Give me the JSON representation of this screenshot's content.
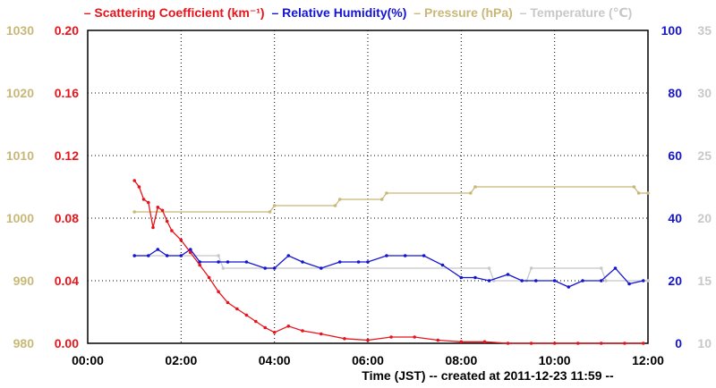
{
  "chart_data": {
    "type": "line",
    "title_parts": [
      {
        "text": "– Scattering Coefficient (km⁻¹)",
        "color": "#e8141b"
      },
      {
        "text": "– Relative Humidity(%)",
        "color": "#1414d2"
      },
      {
        "text": "– Pressure (hPa)",
        "color": "#c8b878"
      },
      {
        "text": "– Temperature (℃)",
        "color": "#c8c8c8"
      }
    ],
    "xlabel": "Time (JST)   -- created at 2011-12-23 11:59 --",
    "x_ticks": [
      "00:00",
      "02:00",
      "04:00",
      "06:00",
      "08:00",
      "10:00",
      "12:00"
    ],
    "x_range_hours": [
      0,
      12
    ],
    "grid": true,
    "axes": {
      "pressure": {
        "range": [
          980,
          1030
        ],
        "ticks": [
          "980",
          "990",
          "1000",
          "1010",
          "1020",
          "1030"
        ],
        "color": "#c8b878",
        "side": "left-outer"
      },
      "scattering": {
        "range": [
          0,
          0.2
        ],
        "ticks": [
          "0.00",
          "0.04",
          "0.08",
          "0.12",
          "0.16",
          "0.20"
        ],
        "color": "#e8141b",
        "side": "left-inner"
      },
      "humidity": {
        "range": [
          0,
          100
        ],
        "ticks": [
          "0",
          "20",
          "40",
          "60",
          "80",
          "100"
        ],
        "color": "#1414d2",
        "side": "right-inner"
      },
      "temperature": {
        "range": [
          10,
          35
        ],
        "ticks": [
          "10",
          "15",
          "20",
          "25",
          "30",
          "35"
        ],
        "color": "#c8c8c8",
        "side": "right-outer"
      }
    },
    "series": [
      {
        "name": "Scattering Coefficient",
        "axis": "scattering",
        "color": "#e8141b",
        "x": [
          1.0,
          1.1,
          1.2,
          1.3,
          1.4,
          1.5,
          1.6,
          1.7,
          1.8,
          2.0,
          2.2,
          2.4,
          2.6,
          2.8,
          3.0,
          3.2,
          3.4,
          3.6,
          3.8,
          4.0,
          4.3,
          4.6,
          5.0,
          5.5,
          6.0,
          6.5,
          7.0,
          7.5,
          8.0,
          8.5,
          9.0,
          9.5,
          10.0,
          10.5,
          11.0,
          11.5,
          11.9
        ],
        "y": [
          0.104,
          0.1,
          0.092,
          0.09,
          0.074,
          0.087,
          0.085,
          0.078,
          0.072,
          0.066,
          0.058,
          0.05,
          0.042,
          0.033,
          0.026,
          0.022,
          0.018,
          0.014,
          0.01,
          0.007,
          0.011,
          0.008,
          0.006,
          0.003,
          0.002,
          0.004,
          0.004,
          0.002,
          0.001,
          0.001,
          0.0,
          0.0,
          0.0,
          0.0,
          0.0,
          0.0,
          0.0
        ]
      },
      {
        "name": "Relative Humidity",
        "axis": "humidity",
        "color": "#1414d2",
        "x": [
          1.0,
          1.3,
          1.5,
          1.7,
          2.0,
          2.2,
          2.4,
          2.8,
          3.0,
          3.4,
          3.8,
          4.0,
          4.3,
          4.6,
          5.0,
          5.4,
          5.8,
          6.0,
          6.4,
          6.8,
          7.2,
          7.6,
          8.0,
          8.3,
          8.6,
          9.0,
          9.3,
          9.6,
          10.0,
          10.3,
          10.6,
          11.0,
          11.3,
          11.6,
          11.9
        ],
        "y": [
          28,
          28,
          30,
          28,
          28,
          30,
          26,
          26,
          26,
          26,
          24,
          24,
          28,
          26,
          24,
          26,
          26,
          26,
          28,
          28,
          28,
          25,
          21,
          21,
          20,
          22,
          20,
          20,
          20,
          18,
          20,
          20,
          24,
          19,
          20
        ]
      },
      {
        "name": "Pressure",
        "axis": "pressure",
        "color": "#c8b878",
        "x": [
          1.0,
          3.9,
          4.0,
          5.3,
          5.4,
          6.3,
          6.4,
          8.2,
          8.3,
          11.7,
          11.8,
          12.0
        ],
        "y": [
          1001,
          1001,
          1002,
          1002,
          1003,
          1003,
          1004,
          1004,
          1005,
          1005,
          1004,
          1004
        ]
      },
      {
        "name": "Temperature",
        "axis": "temperature",
        "color": "#c8c8c8",
        "x": [
          1.0,
          2.8,
          2.9,
          8.6,
          8.7,
          9.4,
          9.5,
          11.0,
          11.1,
          12.0
        ],
        "y": [
          17,
          17,
          16,
          16,
          15,
          15,
          16,
          16,
          15,
          15
        ]
      }
    ]
  }
}
